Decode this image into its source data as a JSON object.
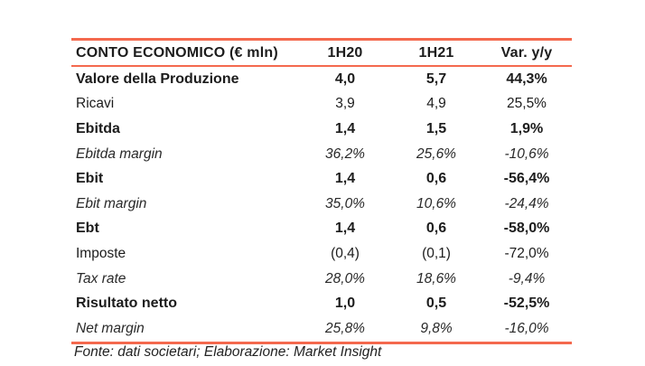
{
  "colors": {
    "accent_line": "#F4694E",
    "text": "#1c1c1c",
    "background": "#ffffff"
  },
  "table": {
    "title": "CONTO ECONOMICO (€ mln)",
    "columns": [
      "CONTO ECONOMICO (€ mln)",
      "1H20",
      "1H21",
      "Var. y/y"
    ],
    "rows": [
      {
        "label": "Valore della Produzione",
        "h1_2020": "4,0",
        "h1_2021": "5,7",
        "var_yy": "44,3%",
        "style": "bold"
      },
      {
        "label": "Ricavi",
        "h1_2020": "3,9",
        "h1_2021": "4,9",
        "var_yy": "25,5%",
        "style": "regular"
      },
      {
        "label": "Ebitda",
        "h1_2020": "1,4",
        "h1_2021": "1,5",
        "var_yy": "1,9%",
        "style": "bold"
      },
      {
        "label": "Ebitda margin",
        "h1_2020": "36,2%",
        "h1_2021": "25,6%",
        "var_yy": "-10,6%",
        "style": "italic"
      },
      {
        "label": "Ebit",
        "h1_2020": "1,4",
        "h1_2021": "0,6",
        "var_yy": "-56,4%",
        "style": "bold"
      },
      {
        "label": "Ebit margin",
        "h1_2020": "35,0%",
        "h1_2021": "10,6%",
        "var_yy": "-24,4%",
        "style": "italic"
      },
      {
        "label": "Ebt",
        "h1_2020": "1,4",
        "h1_2021": "0,6",
        "var_yy": "-58,0%",
        "style": "bold"
      },
      {
        "label": "Imposte",
        "h1_2020": "(0,4)",
        "h1_2021": "(0,1)",
        "var_yy": "-72,0%",
        "style": "regular"
      },
      {
        "label": "Tax rate",
        "h1_2020": "28,0%",
        "h1_2021": "18,6%",
        "var_yy": "-9,4%",
        "style": "italic"
      },
      {
        "label": "Risultato netto",
        "h1_2020": "1,0",
        "h1_2021": "0,5",
        "var_yy": "-52,5%",
        "style": "bold"
      },
      {
        "label": "Net margin",
        "h1_2020": "25,8%",
        "h1_2021": "9,8%",
        "var_yy": "-16,0%",
        "style": "italic"
      }
    ]
  },
  "footer": {
    "source_note": "Fonte: dati societari; Elaborazione: Market Insight"
  }
}
